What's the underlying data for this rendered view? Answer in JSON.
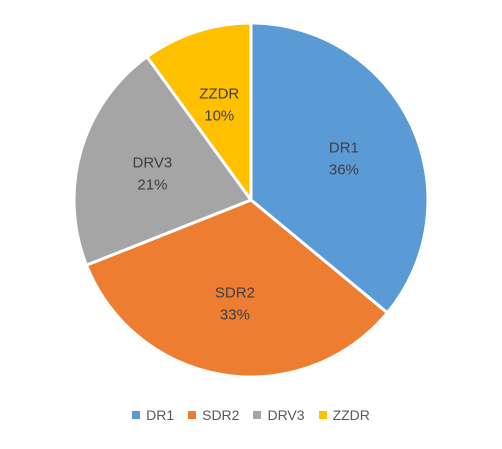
{
  "chart_data": {
    "type": "pie",
    "title": "",
    "legend_position": "bottom",
    "slices": [
      {
        "name": "DR1",
        "value": 36,
        "label": "36%",
        "color": "#5B9BD5"
      },
      {
        "name": "SDR2",
        "value": 33,
        "label": "33%",
        "color": "#ED7D31"
      },
      {
        "name": "DRV3",
        "value": 21,
        "label": "21%",
        "color": "#A5A5A5"
      },
      {
        "name": "ZZDR",
        "value": 10,
        "label": "10%",
        "color": "#FFC000"
      }
    ]
  }
}
